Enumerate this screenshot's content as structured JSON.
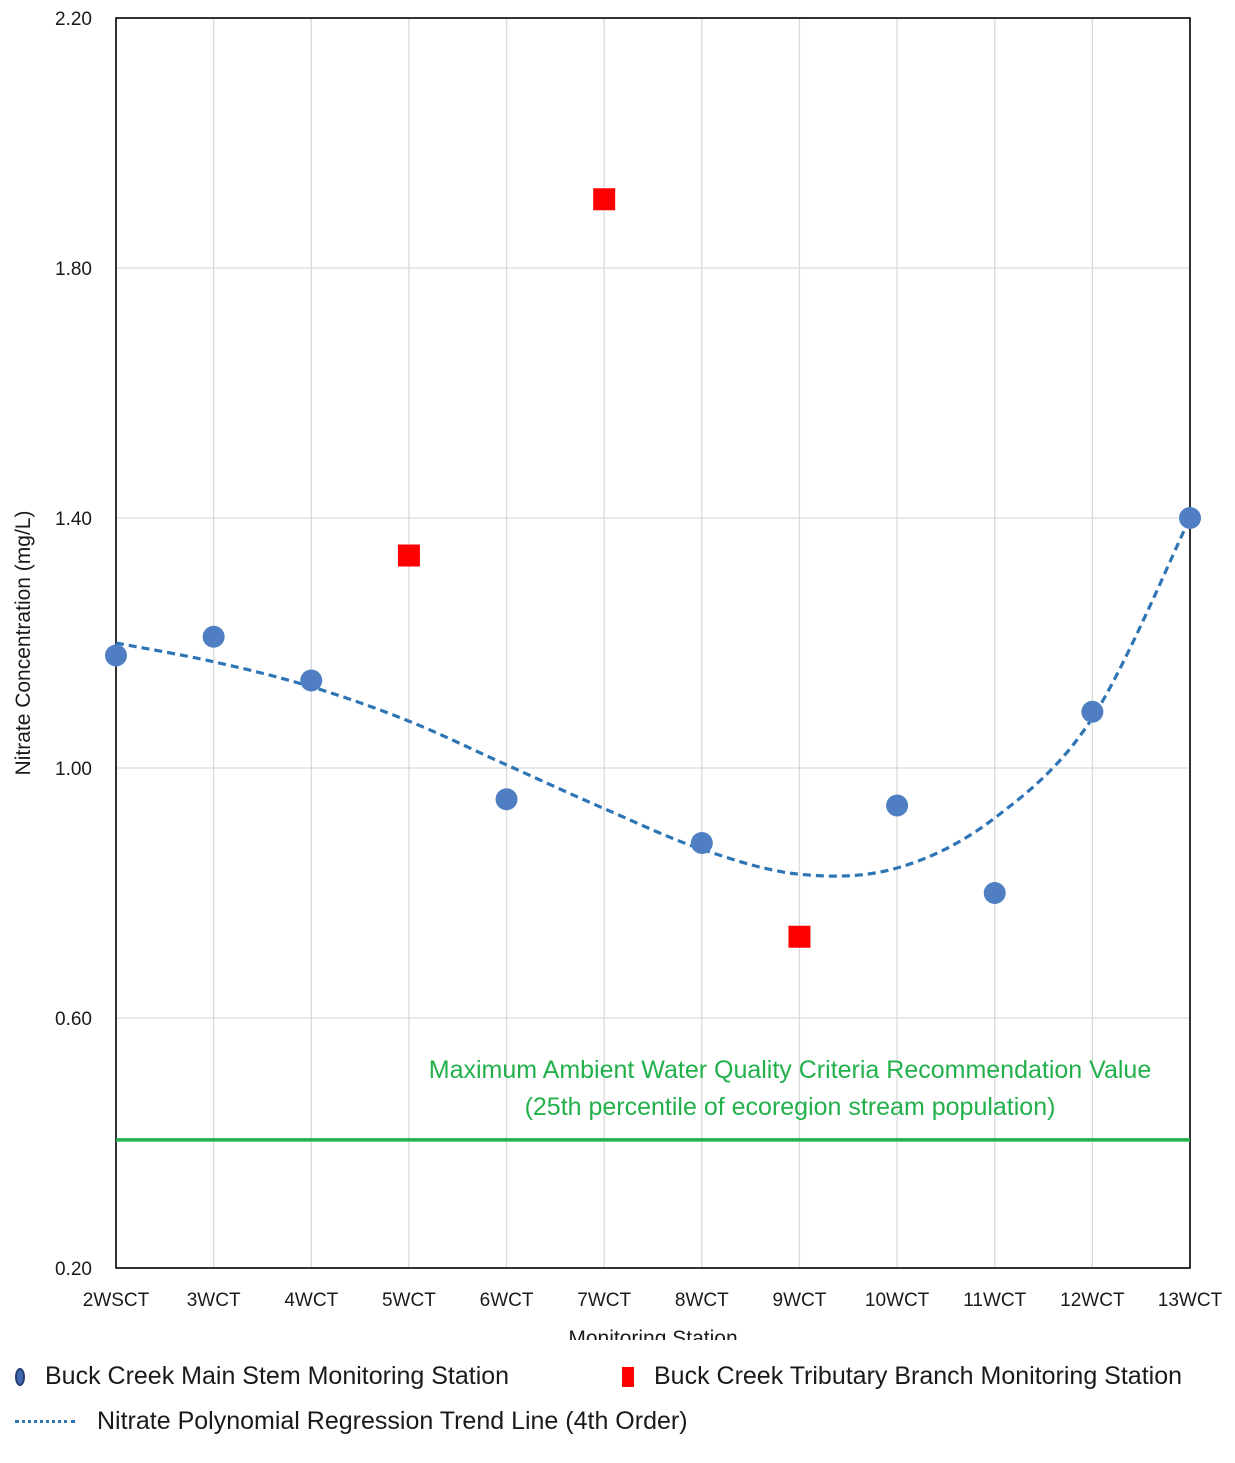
{
  "chart_data": {
    "type": "scatter",
    "x_categories": [
      "2WSCT",
      "3WCT",
      "4WCT",
      "5WCT",
      "6WCT",
      "7WCT",
      "8WCT",
      "9WCT",
      "10WCT",
      "11WCT",
      "12WCT",
      "13WCT"
    ],
    "xlabel": "Monitoring Station",
    "ylabel": "Nitrate Concentration (mg/L)",
    "ylim": [
      0.2,
      2.2
    ],
    "yticks": [
      0.2,
      0.6,
      1.0,
      1.4,
      1.8,
      2.2
    ],
    "ytick_labels": [
      "0.20",
      "0.60",
      "1.00",
      "1.40",
      "1.80",
      "2.20"
    ],
    "grid": true,
    "series": [
      {
        "name": "Buck Creek Main Stem Monitoring Station",
        "marker": "circle",
        "color": "#4f7fc2",
        "points": [
          {
            "x": "2WSCT",
            "y": 1.18
          },
          {
            "x": "3WCT",
            "y": 1.21
          },
          {
            "x": "4WCT",
            "y": 1.14
          },
          {
            "x": "6WCT",
            "y": 0.95
          },
          {
            "x": "8WCT",
            "y": 0.88
          },
          {
            "x": "10WCT",
            "y": 0.94
          },
          {
            "x": "11WCT",
            "y": 0.8
          },
          {
            "x": "12WCT",
            "y": 1.09
          },
          {
            "x": "13WCT",
            "y": 1.4
          }
        ]
      },
      {
        "name": "Buck Creek Tributary Branch Monitoring Station",
        "marker": "square",
        "color": "#ff0000",
        "points": [
          {
            "x": "5WCT",
            "y": 1.34
          },
          {
            "x": "7WCT",
            "y": 1.91
          },
          {
            "x": "9WCT",
            "y": 0.73
          }
        ]
      }
    ],
    "trendline": {
      "name": "Nitrate Polynomial Regression Trend Line (4th Order)",
      "color": "#2e75b6",
      "style": "dashed",
      "x": [
        "2WSCT",
        "3WCT",
        "4WCT",
        "5WCT",
        "6WCT",
        "7WCT",
        "8WCT",
        "9WCT",
        "10WCT",
        "11WCT",
        "12WCT",
        "13WCT"
      ],
      "y": [
        1.2,
        1.17,
        1.13,
        1.075,
        1.005,
        0.935,
        0.87,
        0.83,
        0.84,
        0.92,
        1.08,
        1.4
      ]
    },
    "reference_line": {
      "value": 0.405,
      "color": "#22b04b",
      "label_line1": "Maximum Ambient Water Quality Criteria Recommendation Value",
      "label_line2": "(25th percentile of ecoregion stream population)"
    }
  },
  "legend": {
    "main_stem": "Buck Creek Main Stem Monitoring Station",
    "tributary": "Buck Creek Tributary Branch Monitoring Station",
    "trendline": "Nitrate Polynomial Regression Trend Line (4th Order)"
  }
}
